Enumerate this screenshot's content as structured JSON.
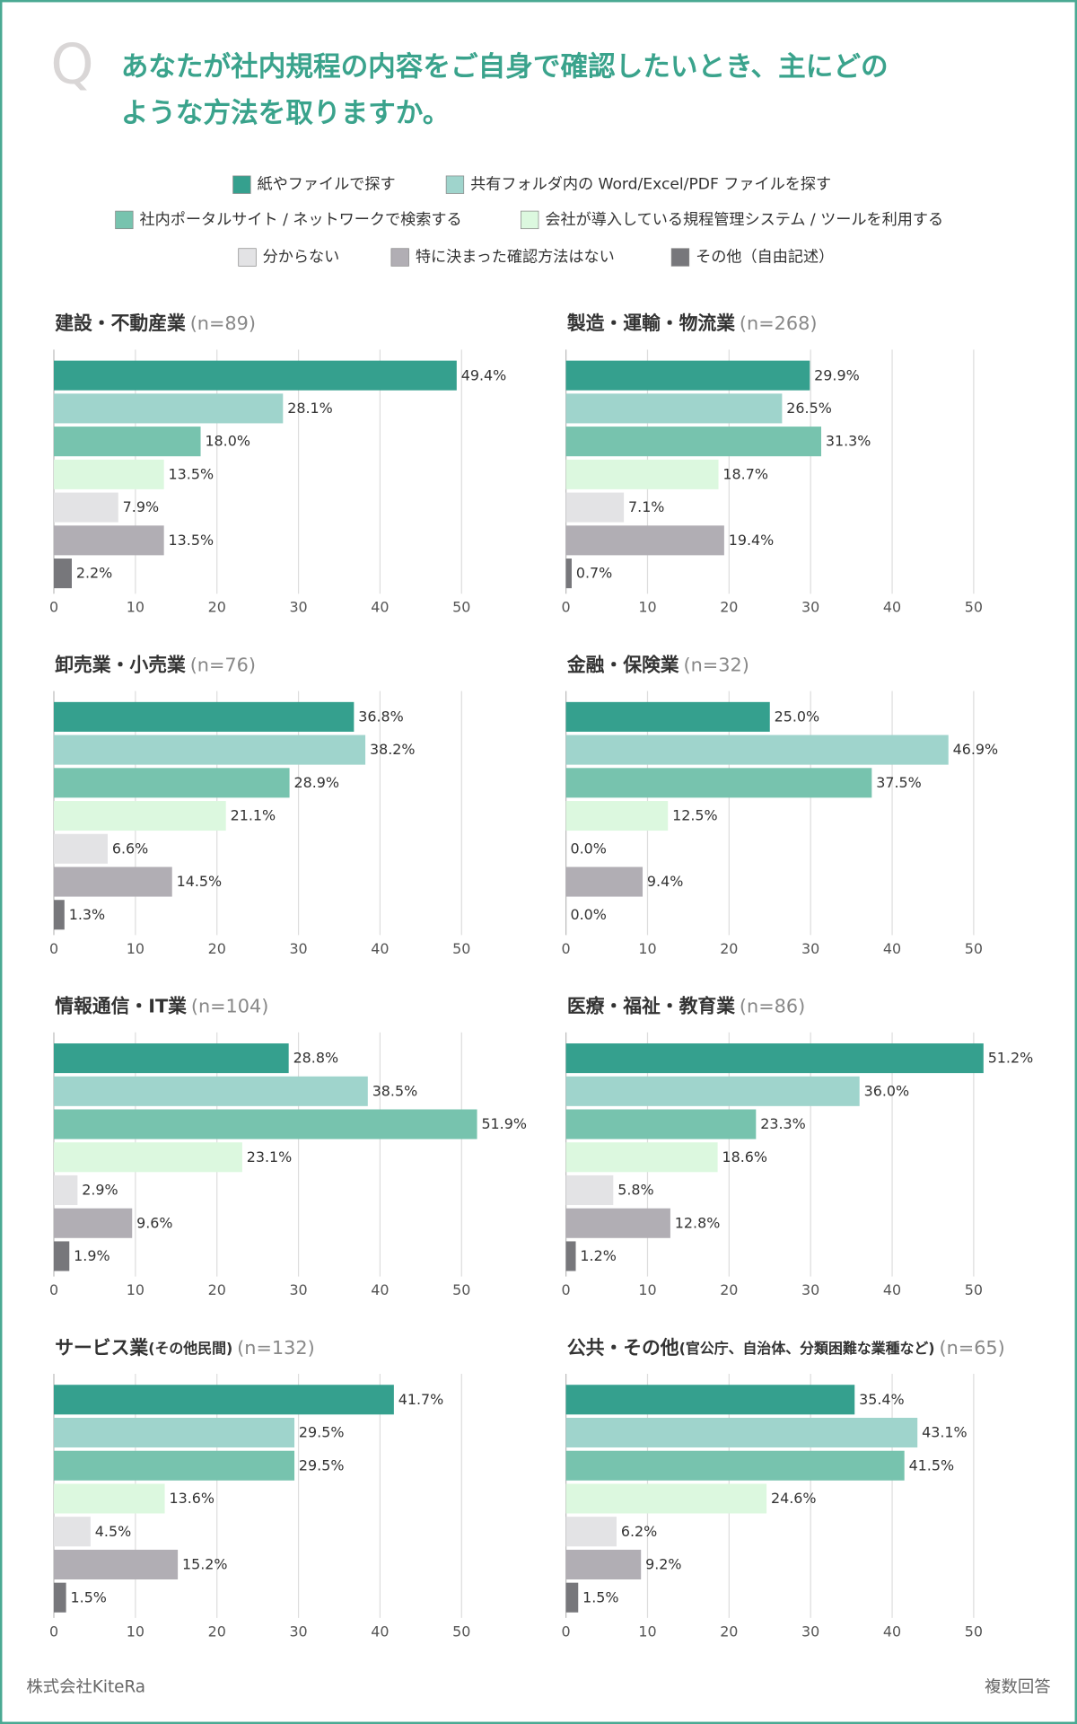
{
  "header": {
    "mark": "Q",
    "title_lines": [
      "あなたが社内規程の内容をご自身で確認したいとき、主にどの",
      "ような方法を取りますか。"
    ]
  },
  "legend": [
    {
      "name": "紙やファイルで探す",
      "color": "#35a08e"
    },
    {
      "name": "共有フォルダ内の Word/Excel/PDF ファイルを探す",
      "color": "#9fd4cc"
    },
    {
      "name": "社内ポータルサイト / ネットワークで検索する",
      "color": "#77c3ae"
    },
    {
      "name": "会社が導入している規程管理システム / ツールを利用する",
      "color": "#dcf8df"
    },
    {
      "name": "分からない",
      "color": "#e3e3e5"
    },
    {
      "name": "特に決まった確認方法はない",
      "color": "#b1aeb4"
    },
    {
      "name": "その他（自由記述）",
      "color": "#77777b"
    }
  ],
  "chart_data": [
    {
      "type": "bar",
      "title": "建設・不動産業",
      "n_label": "(n=89)",
      "values": [
        49.4,
        28.1,
        18.0,
        13.5,
        7.9,
        13.5,
        2.2
      ],
      "value_labels": [
        "49.4%",
        "28.1%",
        "18.0%",
        "13.5%",
        "7.9%",
        "13.5%",
        "2.2%"
      ],
      "xlim": [
        0,
        50
      ],
      "xticks": [
        0,
        10,
        20,
        30,
        40,
        50
      ],
      "grid": true
    },
    {
      "type": "bar",
      "title": "製造・運輸・物流業",
      "n_label": "(n=268)",
      "values": [
        29.9,
        26.5,
        31.3,
        18.7,
        7.1,
        19.4,
        0.7
      ],
      "value_labels": [
        "29.9%",
        "26.5%",
        "31.3%",
        "18.7%",
        "7.1%",
        "19.4%",
        "0.7%"
      ],
      "xlim": [
        0,
        50
      ],
      "xticks": [
        0,
        10,
        20,
        30,
        40,
        50
      ],
      "grid": true
    },
    {
      "type": "bar",
      "title": "卸売業・小売業",
      "n_label": "(n=76)",
      "values": [
        36.8,
        38.2,
        28.9,
        21.1,
        6.6,
        14.5,
        1.3
      ],
      "value_labels": [
        "36.8%",
        "38.2%",
        "28.9%",
        "21.1%",
        "6.6%",
        "14.5%",
        "1.3%"
      ],
      "xlim": [
        0,
        50
      ],
      "xticks": [
        0,
        10,
        20,
        30,
        40,
        50
      ],
      "grid": true
    },
    {
      "type": "bar",
      "title": "金融・保険業",
      "n_label": "(n=32)",
      "values": [
        25.0,
        46.9,
        37.5,
        12.5,
        0.0,
        9.4,
        0.0
      ],
      "value_labels": [
        "25.0%",
        "46.9%",
        "37.5%",
        "12.5%",
        "0.0%",
        "9.4%",
        "0.0%"
      ],
      "xlim": [
        0,
        50
      ],
      "xticks": [
        0,
        10,
        20,
        30,
        40,
        50
      ],
      "grid": true
    },
    {
      "type": "bar",
      "title": "情報通信・IT業",
      "n_label": "(n=104)",
      "values": [
        28.8,
        38.5,
        51.9,
        23.1,
        2.9,
        9.6,
        1.9
      ],
      "value_labels": [
        "28.8%",
        "38.5%",
        "51.9%",
        "23.1%",
        "2.9%",
        "9.6%",
        "1.9%"
      ],
      "xlim": [
        0,
        50
      ],
      "xticks": [
        0,
        10,
        20,
        30,
        40,
        50
      ],
      "grid": true
    },
    {
      "type": "bar",
      "title": "医療・福祉・教育業",
      "n_label": "(n=86)",
      "values": [
        51.2,
        36.0,
        23.3,
        18.6,
        5.8,
        12.8,
        1.2
      ],
      "value_labels": [
        "51.2%",
        "36.0%",
        "23.3%",
        "18.6%",
        "5.8%",
        "12.8%",
        "1.2%"
      ],
      "xlim": [
        0,
        50
      ],
      "xticks": [
        0,
        10,
        20,
        30,
        40,
        50
      ],
      "grid": true
    },
    {
      "type": "bar",
      "title": "サービス業",
      "title_note": "(その他民間)",
      "n_label": "(n=132)",
      "values": [
        41.7,
        29.5,
        29.5,
        13.6,
        4.5,
        15.2,
        1.5
      ],
      "value_labels": [
        "41.7%",
        "29.5%",
        "29.5%",
        "13.6%",
        "4.5%",
        "15.2%",
        "1.5%"
      ],
      "xlim": [
        0,
        50
      ],
      "xticks": [
        0,
        10,
        20,
        30,
        40,
        50
      ],
      "grid": true
    },
    {
      "type": "bar",
      "title": "公共・その他",
      "title_note": "(官公庁、自治体、分類困難な業種など)",
      "n_label": "(n=65)",
      "values": [
        35.4,
        43.1,
        41.5,
        24.6,
        6.2,
        9.2,
        1.5
      ],
      "value_labels": [
        "35.4%",
        "43.1%",
        "41.5%",
        "24.6%",
        "6.2%",
        "9.2%",
        "1.5%"
      ],
      "xlim": [
        0,
        50
      ],
      "xticks": [
        0,
        10,
        20,
        30,
        40,
        50
      ],
      "grid": true
    }
  ],
  "footer": {
    "company": "株式会社KiteRa",
    "note": "複数回答"
  }
}
